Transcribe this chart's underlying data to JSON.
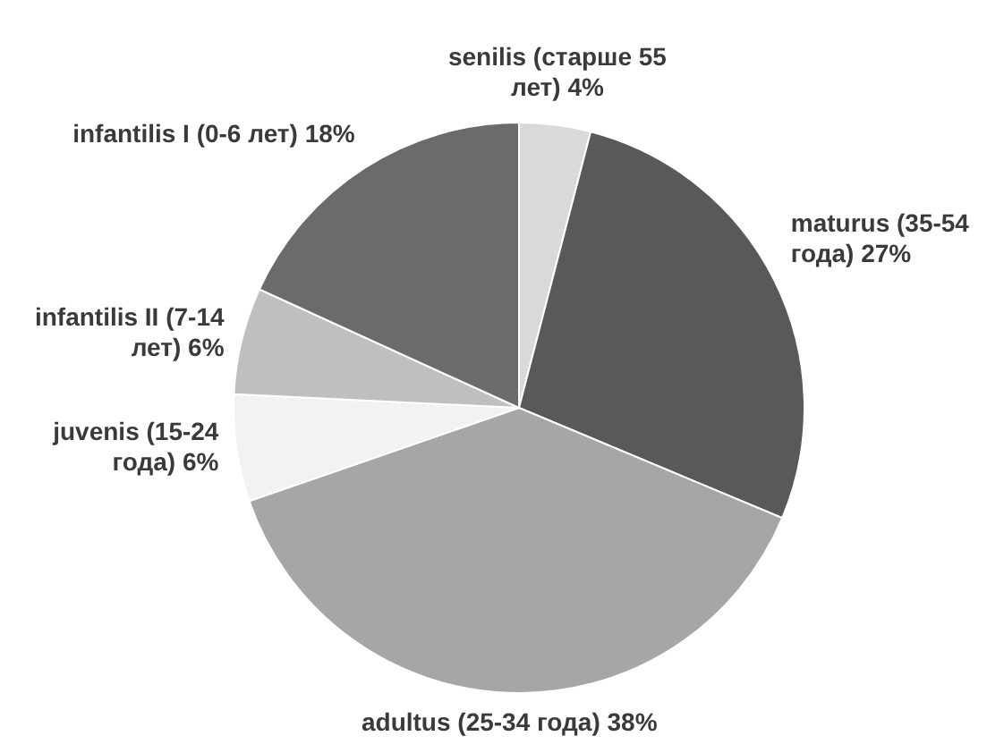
{
  "chart_data": {
    "type": "pie",
    "categories": [
      "senilis (старше 55 лет)",
      "maturus (35-54 года)",
      "adultus (25-34 года)",
      "juvenis (15-24 года)",
      "infantilis II (7-14 лет)",
      "infantilis I (0-6 лет)"
    ],
    "values": [
      4,
      27,
      38,
      6,
      6,
      18
    ],
    "value_labels": [
      "4%",
      "27%",
      "38%",
      "6%",
      "6%",
      "18%"
    ],
    "colors": [
      "#d9d9d9",
      "#595959",
      "#a6a6a6",
      "#f2f2f2",
      "#bfbfbf",
      "#6b6b6b"
    ],
    "legend": false
  }
}
